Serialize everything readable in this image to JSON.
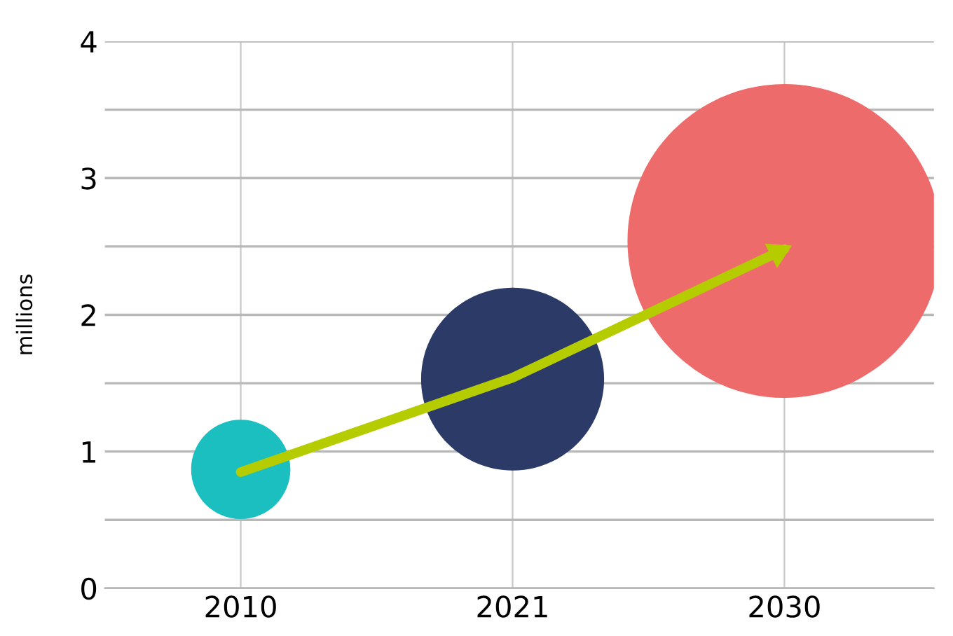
{
  "chart_data": {
    "type": "bubble",
    "ylabel": "millions",
    "categories": [
      "2010",
      "2021",
      "2030"
    ],
    "series": [
      {
        "values": [
          0.87,
          1.53,
          2.54
        ],
        "sizes": [
          0.1,
          0.34,
          1
        ],
        "colors": [
          "#1bbfc0",
          "#2b3a66",
          "#ee6b6b"
        ]
      },
      {
        "type": "line",
        "values": [
          0.85,
          1.54,
          2.48
        ],
        "color": "#b5cc00",
        "marker": "none",
        "line_style": "solid"
      }
    ],
    "ylim": [
      0,
      4
    ],
    "yticks": [
      0,
      {
        "value": 0.5,
        "label": null
      },
      1,
      {
        "value": 1.5,
        "label": null
      },
      2,
      {
        "value": 2.5,
        "label": null
      },
      3,
      {
        "value": 3.5,
        "label": null
      },
      4
    ],
    "grid": true,
    "legend": false
  }
}
